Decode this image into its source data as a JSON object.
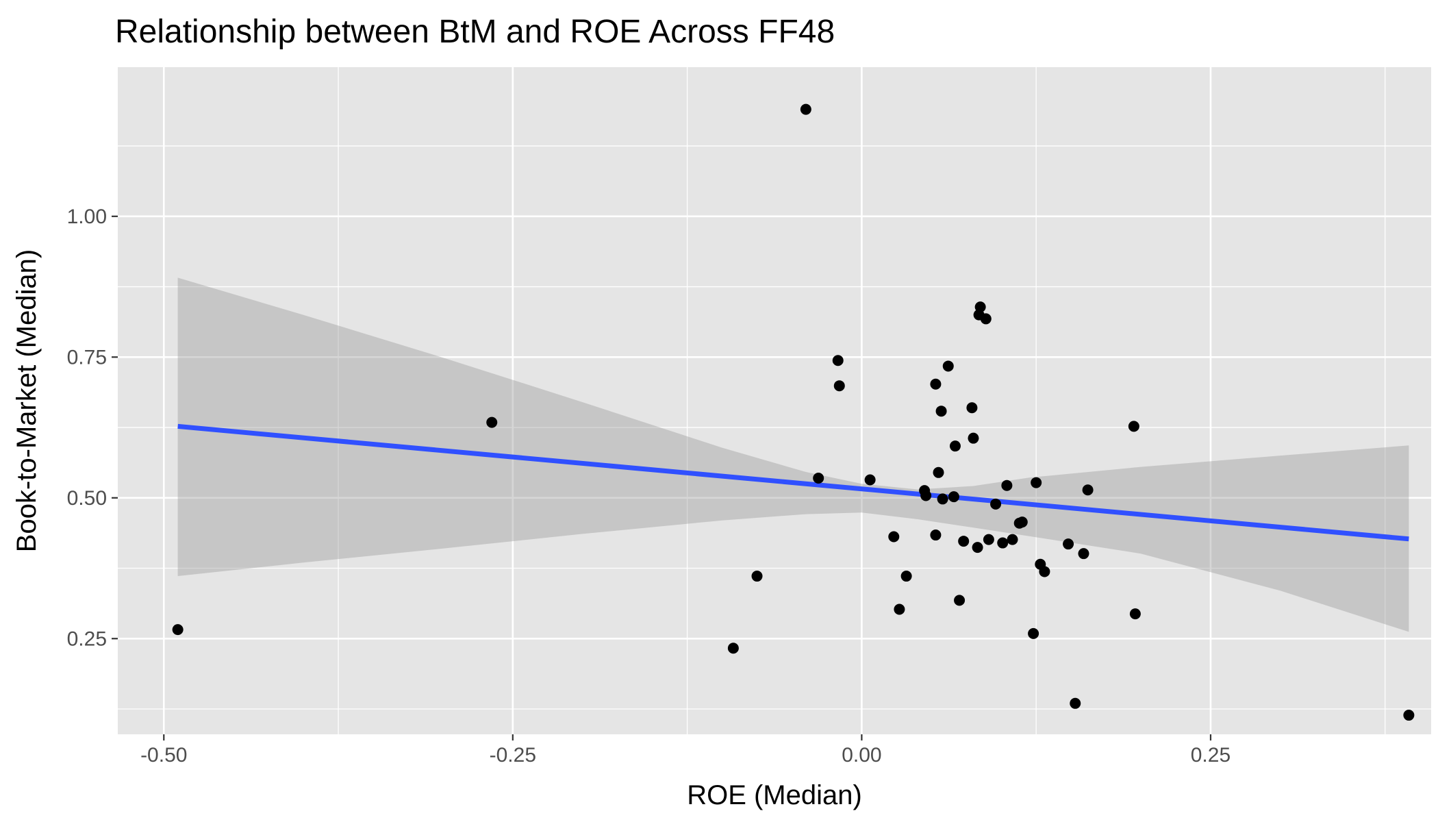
{
  "chart_data": {
    "type": "scatter",
    "title": "Relationship between BtM and ROE Across FF48",
    "xlabel": "ROE (Median)",
    "ylabel": "Book-to-Market (Median)",
    "xlim": [
      -0.533,
      0.408
    ],
    "ylim": [
      0.08,
      1.265
    ],
    "x_ticks": [
      -0.5,
      -0.25,
      0.0,
      0.25
    ],
    "x_tick_labels": [
      "-0.50",
      "-0.25",
      "0.00",
      "0.25"
    ],
    "y_ticks": [
      0.25,
      0.5,
      0.75,
      1.0
    ],
    "y_tick_labels": [
      "0.25",
      "0.50",
      "0.75",
      "1.00"
    ],
    "grid": true,
    "legend": "none",
    "colors": {
      "panel": "#e5e5e5",
      "point": "#000000",
      "fit_line": "#3050ff",
      "band": "#999999"
    },
    "points": [
      {
        "x": -0.49,
        "y": 0.266
      },
      {
        "x": -0.265,
        "y": 0.634
      },
      {
        "x": -0.092,
        "y": 0.233
      },
      {
        "x": -0.075,
        "y": 0.361
      },
      {
        "x": -0.04,
        "y": 1.19
      },
      {
        "x": -0.031,
        "y": 0.535
      },
      {
        "x": -0.017,
        "y": 0.744
      },
      {
        "x": -0.016,
        "y": 0.699
      },
      {
        "x": 0.006,
        "y": 0.532
      },
      {
        "x": 0.023,
        "y": 0.431
      },
      {
        "x": 0.027,
        "y": 0.302
      },
      {
        "x": 0.032,
        "y": 0.361
      },
      {
        "x": 0.045,
        "y": 0.513
      },
      {
        "x": 0.046,
        "y": 0.504
      },
      {
        "x": 0.053,
        "y": 0.702
      },
      {
        "x": 0.053,
        "y": 0.434
      },
      {
        "x": 0.055,
        "y": 0.545
      },
      {
        "x": 0.057,
        "y": 0.654
      },
      {
        "x": 0.058,
        "y": 0.498
      },
      {
        "x": 0.062,
        "y": 0.734
      },
      {
        "x": 0.066,
        "y": 0.502
      },
      {
        "x": 0.067,
        "y": 0.592
      },
      {
        "x": 0.07,
        "y": 0.318
      },
      {
        "x": 0.073,
        "y": 0.423
      },
      {
        "x": 0.079,
        "y": 0.66
      },
      {
        "x": 0.08,
        "y": 0.606
      },
      {
        "x": 0.083,
        "y": 0.412
      },
      {
        "x": 0.084,
        "y": 0.825
      },
      {
        "x": 0.085,
        "y": 0.839
      },
      {
        "x": 0.089,
        "y": 0.818
      },
      {
        "x": 0.091,
        "y": 0.426
      },
      {
        "x": 0.096,
        "y": 0.489
      },
      {
        "x": 0.101,
        "y": 0.42
      },
      {
        "x": 0.104,
        "y": 0.522
      },
      {
        "x": 0.108,
        "y": 0.426
      },
      {
        "x": 0.113,
        "y": 0.455
      },
      {
        "x": 0.115,
        "y": 0.457
      },
      {
        "x": 0.123,
        "y": 0.259
      },
      {
        "x": 0.125,
        "y": 0.527
      },
      {
        "x": 0.128,
        "y": 0.382
      },
      {
        "x": 0.131,
        "y": 0.369
      },
      {
        "x": 0.148,
        "y": 0.418
      },
      {
        "x": 0.153,
        "y": 0.135
      },
      {
        "x": 0.159,
        "y": 0.401
      },
      {
        "x": 0.162,
        "y": 0.514
      },
      {
        "x": 0.195,
        "y": 0.627
      },
      {
        "x": 0.196,
        "y": 0.294
      },
      {
        "x": 0.392,
        "y": 0.114
      }
    ],
    "fit_line": {
      "x": [
        -0.49,
        0.392
      ],
      "y": [
        0.627,
        0.427
      ]
    },
    "confidence_band": {
      "x": [
        -0.49,
        -0.4,
        -0.3,
        -0.2,
        -0.1,
        -0.04,
        0.0,
        0.04,
        0.08,
        0.12,
        0.2,
        0.3,
        0.392
      ],
      "upper": [
        0.891,
        0.825,
        0.749,
        0.67,
        0.589,
        0.546,
        0.525,
        0.515,
        0.521,
        0.536,
        0.555,
        0.575,
        0.593
      ],
      "lower": [
        0.361,
        0.385,
        0.41,
        0.436,
        0.46,
        0.471,
        0.474,
        0.462,
        0.447,
        0.432,
        0.401,
        0.335,
        0.262
      ]
    }
  }
}
